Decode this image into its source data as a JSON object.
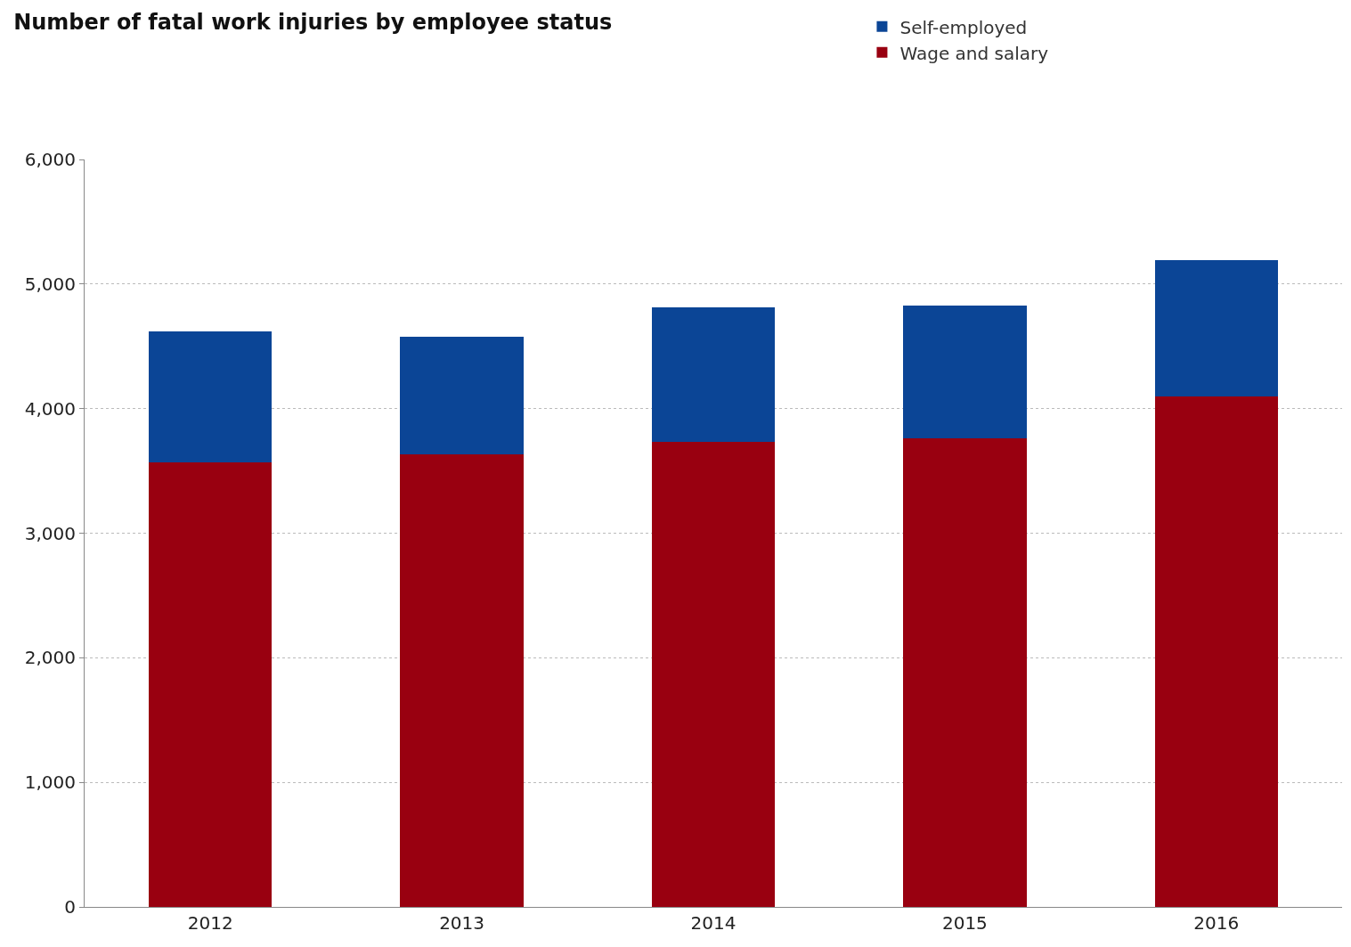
{
  "chart_data": {
    "type": "bar",
    "title": "Number of fatal work injuries by employee status",
    "categories": [
      "2012",
      "2013",
      "2014",
      "2015",
      "2016"
    ],
    "series": [
      {
        "name": "Wage and salary",
        "color": "#990010",
        "values": [
          3570,
          3630,
          3730,
          3760,
          4100
        ]
      },
      {
        "name": "Self-employed",
        "color": "#0b4596",
        "values": [
          1050,
          950,
          1080,
          1070,
          1090
        ]
      }
    ],
    "stacked": true,
    "ylim": [
      0,
      6000
    ],
    "yticks": [
      0,
      {
        "value": 1000,
        "label": "1,000"
      },
      {
        "value": 2000,
        "label": "2,000"
      },
      {
        "value": 3000,
        "label": "3,000"
      },
      {
        "value": 4000,
        "label": "4,000"
      },
      {
        "value": 5000,
        "label": "5,000"
      },
      {
        "value": 6000,
        "label": "6,000"
      }
    ],
    "grid": "y",
    "legend": "top right"
  }
}
